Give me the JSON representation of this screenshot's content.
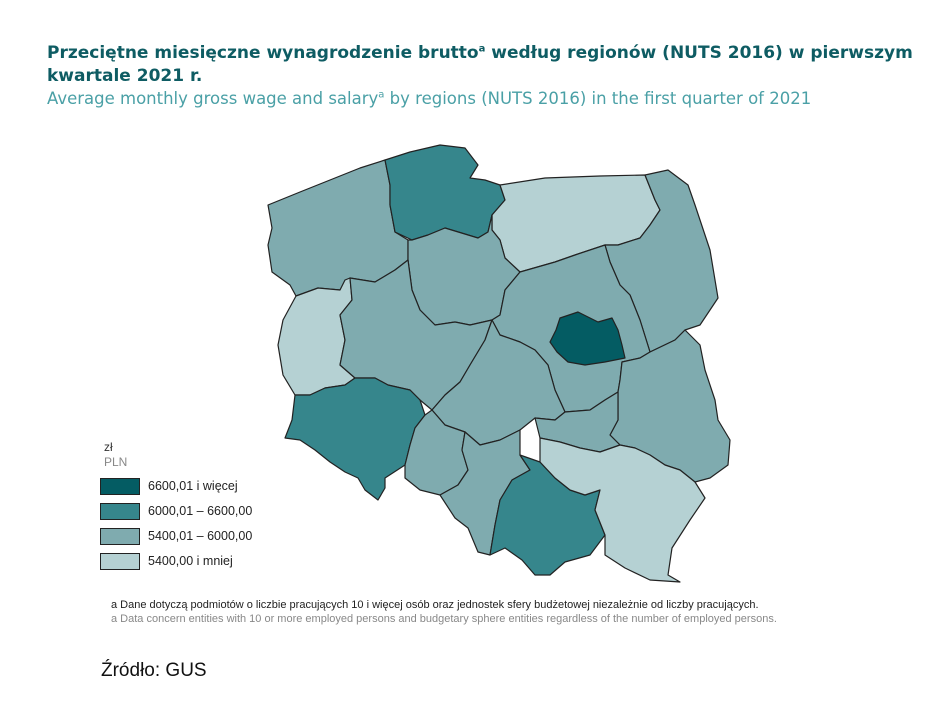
{
  "title": {
    "pl_main": "Przeciętne miesięczne wynagrodzenie brutto",
    "pl_sup": "a",
    "pl_rest": " według regionów (NUTS 2016) w pierwszym kwartale 2021 r.",
    "en_main": "Average monthly gross wage and salary",
    "en_sup": "a",
    "en_rest": " by regions (NUTS 2016) in the first quarter of 2021"
  },
  "legend": {
    "unit_pl": "zł",
    "unit_en": "PLN",
    "classes": [
      {
        "label": "6600,01 i więcej",
        "color": "#045c63"
      },
      {
        "label": "6000,01 – 6600,00",
        "color": "#36868c"
      },
      {
        "label": "5400,01 – 6000,00",
        "color": "#7fabaf"
      },
      {
        "label": "5400,00 i mniej",
        "color": "#b5d1d3"
      }
    ]
  },
  "map": {
    "stroke_color": "#222222",
    "class_by_region": {
      "warszawski-stoleczny": 0,
      "pomorskie": 1,
      "dolnoslaskie": 1,
      "malopolskie": 1,
      "zachodniopomorskie": 2,
      "kujawsko-pomorskie": 2,
      "podlaskie": 2,
      "wielkopolskie": 2,
      "mazowiecki-regionalny": 2,
      "lodzkie": 2,
      "lubelskie": 2,
      "swietokrzyskie": 2,
      "opolskie": 2,
      "slaskie": 2,
      "warminsko-mazurskie": 3,
      "lubuskie": 3,
      "podkarpackie": 3
    }
  },
  "footnote": {
    "pl": "a Dane dotyczą podmiotów o liczbie pracujących 10 i więcej osób oraz jednostek sfery budżetowej niezależnie od liczby pracujących.",
    "en": "a Data concern entities with 10 or more employed persons and budgetary sphere entities regardless of the number of employed persons."
  },
  "source": "Źródło: GUS"
}
